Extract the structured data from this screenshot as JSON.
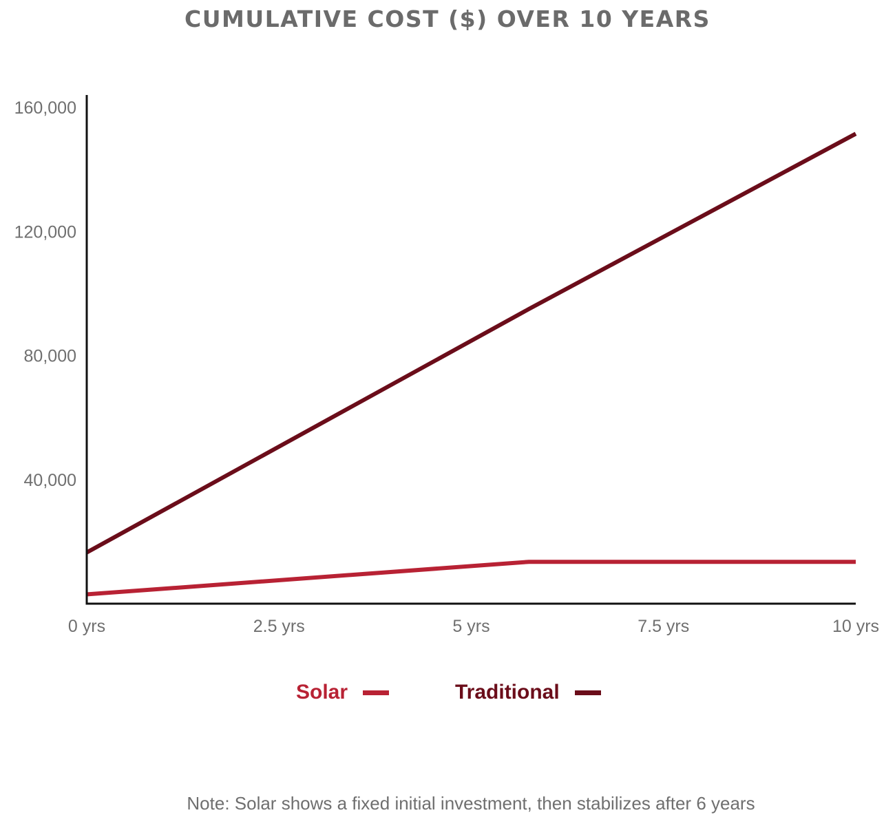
{
  "colors": {
    "solar": "#b82234",
    "traditional": "#6b0d1a",
    "axis": "#111111",
    "text": "#6f6f6f",
    "title": "#6b6b6b"
  },
  "chart_data": {
    "type": "line",
    "title": "CUMULATIVE COST ($) OVER 10 YEARS",
    "xlabel": "",
    "ylabel": "",
    "x": [
      0,
      5.75,
      10
    ],
    "xlim": [
      0,
      10
    ],
    "ylim": [
      0,
      164000
    ],
    "x_ticks": [
      {
        "value": 0,
        "label": "0 yrs"
      },
      {
        "value": 2.5,
        "label": "2.5 yrs"
      },
      {
        "value": 5,
        "label": "5 yrs"
      },
      {
        "value": 7.5,
        "label": "7.5 yrs"
      },
      {
        "value": 10,
        "label": "10 yrs"
      }
    ],
    "y_ticks": [
      {
        "value": 40000,
        "label": "40,000"
      },
      {
        "value": 80000,
        "label": "80,000"
      },
      {
        "value": 120000,
        "label": "120,000"
      },
      {
        "value": 160000,
        "label": "160,000"
      }
    ],
    "grid": false,
    "legend_position": "bottom-center",
    "series": [
      {
        "name": "Solar",
        "color": "#b82234",
        "points": [
          [
            0,
            3000
          ],
          [
            5.75,
            13500
          ],
          [
            10,
            13500
          ]
        ]
      },
      {
        "name": "Traditional",
        "color": "#6b0d1a",
        "points": [
          [
            0,
            16500
          ],
          [
            5.75,
            95000
          ],
          [
            10,
            151500
          ]
        ]
      }
    ],
    "note": "Note: Solar shows a fixed initial investment, then stabilizes after 6 years"
  }
}
